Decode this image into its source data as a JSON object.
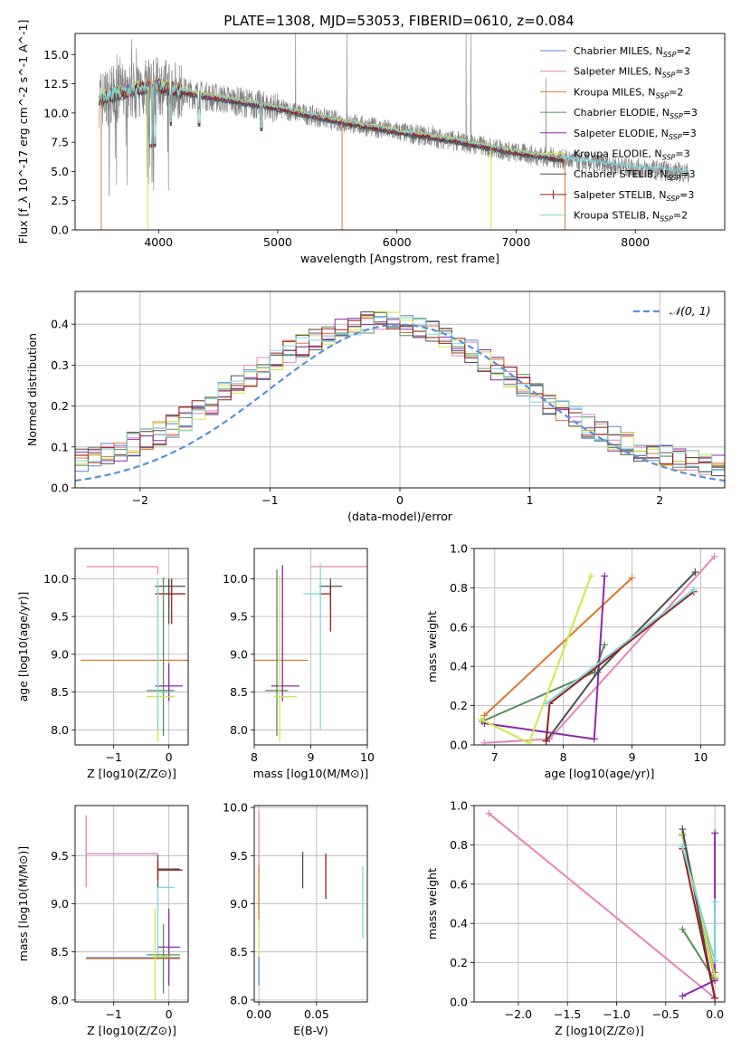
{
  "title": "PLATE=1308, MJD=53053, FIBERID=0610, z=0.084",
  "colors": {
    "chabrier_miles": "#5b84c4",
    "salpeter_miles": "#e485b8",
    "kroupa_miles": "#d9782d",
    "chabrier_elodie": "#5a8a5a",
    "salpeter_elodie": "#8b2aa8",
    "kroupa_elodie": "#cde84a",
    "chabrier_stelib": "#4d4d4d",
    "salpeter_stelib": "#9b1c1c",
    "kroupa_stelib": "#7fd6d8",
    "data": "#7f7f7f",
    "normal": "#5b8fd6"
  },
  "legend": [
    {
      "key": "chabrier_miles",
      "label": "Chabrier MILES, N",
      "sub": "SSP",
      "suffix": "=2"
    },
    {
      "key": "salpeter_miles",
      "label": "Salpeter MILES, N",
      "sub": "SSP",
      "suffix": "=3"
    },
    {
      "key": "kroupa_miles",
      "label": "Kroupa MILES, N",
      "sub": "SSP",
      "suffix": "=2"
    },
    {
      "key": "chabrier_elodie",
      "label": "Chabrier ELODIE, N",
      "sub": "SSP",
      "suffix": "=3"
    },
    {
      "key": "salpeter_elodie",
      "label": "Salpeter ELODIE, N",
      "sub": "SSP",
      "suffix": "=3"
    },
    {
      "key": "kroupa_elodie",
      "label": "Kroupa ELODIE, N",
      "sub": "SSP",
      "suffix": "=3"
    },
    {
      "key": "chabrier_stelib",
      "label": "Chabrier STELIB, N",
      "sub": "SSP",
      "suffix": "=3"
    },
    {
      "key": "salpeter_stelib",
      "label": "Salpeter STELIB, N",
      "sub": "SSP",
      "suffix": "=3"
    },
    {
      "key": "kroupa_stelib",
      "label": "Kroupa STELIB, N",
      "sub": "SSP",
      "suffix": "=2"
    }
  ],
  "chart_data": [
    {
      "id": "spectrum",
      "type": "line",
      "xlabel": "wavelength [Angstrom, rest frame]",
      "ylabel": "Flux [f_λ 10^-17 erg cm^-2 s^-1 A^-1]",
      "xlim": [
        3300,
        8750
      ],
      "ylim": [
        0,
        16.8
      ],
      "xticks": [
        4000,
        5000,
        6000,
        7000,
        8000
      ],
      "yticks": [
        0.0,
        2.5,
        5.0,
        7.5,
        10.0,
        12.5,
        15.0
      ],
      "continuum": {
        "x": [
          3500,
          3700,
          3800,
          3900,
          4000,
          4100,
          4300,
          4600,
          5000,
          5500,
          6000,
          6500,
          7000,
          7500,
          8000,
          8400
        ],
        "y": [
          11.2,
          11.8,
          12.0,
          12.2,
          12.3,
          12.1,
          11.6,
          11.1,
          10.4,
          9.3,
          8.4,
          7.6,
          6.6,
          5.9,
          5.3,
          4.9
        ]
      },
      "model_end_x": 7400,
      "data_end_x": 8450,
      "sky_spikes": [
        {
          "x": 5150,
          "y": 16.8
        },
        {
          "x": 5580,
          "y": 16.8
        },
        {
          "x": 6300,
          "y": 9.0
        },
        {
          "x": 6580,
          "y": 16.8
        },
        {
          "x": 6620,
          "y": 16.8
        },
        {
          "x": 7250,
          "y": 13.0
        }
      ],
      "model_dips": [
        {
          "x": 3520,
          "y": 0
        },
        {
          "x": 3910,
          "y": 0
        },
        {
          "x": 5540,
          "y": 0
        },
        {
          "x": 6790,
          "y": 0
        },
        {
          "x": 7410,
          "y": 0
        }
      ]
    },
    {
      "id": "residuals",
      "type": "step",
      "xlabel": "(data-model)/error",
      "ylabel": "Normed distribution",
      "xlim": [
        -2.5,
        2.5
      ],
      "ylim": [
        0,
        0.48
      ],
      "xticks": [
        -2,
        -1,
        0,
        1,
        2
      ],
      "yticks": [
        0.0,
        0.1,
        0.2,
        0.3,
        0.4
      ],
      "normal_label": "𝒩(0, 1)",
      "bin_width": 0.1
    },
    {
      "id": "age_vs_Z",
      "type": "errorbar",
      "xlabel": "Z [log10(Z/Z⊙)]",
      "ylabel": "age  [log10(age/yr)]",
      "xlim": [
        -1.7,
        0.35
      ],
      "ylim": [
        7.8,
        10.4
      ],
      "xticks": [
        -1,
        0
      ],
      "yticks": [
        8.0,
        8.5,
        9.0,
        9.5,
        10.0
      ],
      "points": [
        {
          "key": "salpeter_miles",
          "x": -0.2,
          "xerr": [
            1.3,
            0
          ],
          "y": 10.16,
          "yerr": [
            0.1,
            0.0
          ]
        },
        {
          "key": "chabrier_stelib",
          "x": 0.0,
          "xerr": [
            0.25,
            0.3
          ],
          "y": 9.9,
          "yerr": [
            0.5,
            0.1
          ]
        },
        {
          "key": "salpeter_stelib",
          "x": 0.05,
          "xerr": [
            0.3,
            0.25
          ],
          "y": 9.8,
          "yerr": [
            0.4,
            0.2
          ]
        },
        {
          "key": "kroupa_miles",
          "x": -0.6,
          "xerr": [
            1.0,
            1.0
          ],
          "y": 8.92,
          "yerr": [
            0,
            0
          ]
        },
        {
          "key": "chabrier_elodie",
          "x": -0.1,
          "xerr": [
            0.3,
            0.2
          ],
          "y": 8.52,
          "yerr": [
            0.6,
            1.5
          ]
        },
        {
          "key": "salpeter_elodie",
          "x": 0.0,
          "xerr": [
            0.25,
            0.25
          ],
          "y": 8.58,
          "yerr": [
            0.2,
            0.3
          ]
        },
        {
          "key": "kroupa_elodie",
          "x": -0.2,
          "xerr": [
            0.2,
            0.3
          ],
          "y": 8.44,
          "yerr": [
            0.6,
            1.5
          ]
        },
        {
          "key": "kroupa_stelib",
          "x": -0.2,
          "xerr": [
            0.0,
            0.2
          ],
          "y": 8.5,
          "yerr": [
            0.5,
            1.5
          ]
        }
      ]
    },
    {
      "id": "age_vs_mass",
      "type": "errorbar",
      "xlabel": "mass [log10(M/M⊙)]",
      "ylabel": "",
      "xlim": [
        8.0,
        10.0
      ],
      "ylim": [
        7.8,
        10.4
      ],
      "xticks": [
        8,
        9,
        10
      ],
      "yticks": [
        8.0,
        8.5,
        9.0,
        9.5,
        10.0
      ],
      "points": [
        {
          "key": "salpeter_miles",
          "x": 9.5,
          "xerr": [
            0.5,
            0.5
          ],
          "y": 10.16,
          "yerr": [
            0,
            0
          ]
        },
        {
          "key": "chabrier_stelib",
          "x": 9.35,
          "xerr": [
            0.2,
            0.2
          ],
          "y": 9.9,
          "yerr": [
            0.3,
            0.1
          ]
        },
        {
          "key": "salpeter_stelib",
          "x": 9.35,
          "xerr": [
            0.2,
            0.0
          ],
          "y": 9.8,
          "yerr": [
            0.5,
            0.1
          ]
        },
        {
          "key": "kroupa_stelib",
          "x": 9.17,
          "xerr": [
            0.3,
            0.0
          ],
          "y": 9.8,
          "yerr": [
            1.8,
            0.4
          ]
        },
        {
          "key": "kroupa_miles",
          "x": 8.45,
          "xerr": [
            0.55,
            0.5
          ],
          "y": 8.92,
          "yerr": [
            0,
            0
          ]
        },
        {
          "key": "chabrier_elodie",
          "x": 8.4,
          "xerr": [
            0.2,
            0.2
          ],
          "y": 8.52,
          "yerr": [
            0.6,
            1.6
          ]
        },
        {
          "key": "salpeter_elodie",
          "x": 8.5,
          "xerr": [
            0.2,
            0.3
          ],
          "y": 8.58,
          "yerr": [
            0.2,
            1.6
          ]
        },
        {
          "key": "kroupa_elodie",
          "x": 8.45,
          "xerr": [
            0.1,
            0.3
          ],
          "y": 8.44,
          "yerr": [
            0.6,
            1.6
          ]
        }
      ]
    },
    {
      "id": "weight_vs_age",
      "type": "line",
      "xlabel": "age  [log10(age/yr)]",
      "ylabel": "mass weight",
      "xlim": [
        6.7,
        10.35
      ],
      "ylim": [
        0,
        1.0
      ],
      "xticks": [
        7,
        8,
        9,
        10
      ],
      "yticks": [
        0.0,
        0.2,
        0.4,
        0.6,
        0.8,
        1.0
      ],
      "series": [
        {
          "key": "kroupa_miles",
          "x": [
            6.85,
            9.0
          ],
          "y": [
            0.15,
            0.85
          ]
        },
        {
          "key": "salpeter_miles",
          "x": [
            6.85,
            7.8,
            10.2
          ],
          "y": [
            0.01,
            0.03,
            0.96
          ]
        },
        {
          "key": "chabrier_elodie",
          "x": [
            6.82,
            8.45,
            8.6
          ],
          "y": [
            0.12,
            0.37,
            0.51
          ]
        },
        {
          "key": "salpeter_elodie",
          "x": [
            6.85,
            8.45,
            8.6
          ],
          "y": [
            0.11,
            0.03,
            0.86
          ]
        },
        {
          "key": "kroupa_elodie",
          "x": [
            6.8,
            7.5,
            8.4
          ],
          "y": [
            0.13,
            0.01,
            0.86
          ]
        },
        {
          "key": "chabrier_stelib",
          "x": [
            7.75,
            8.5,
            9.92
          ],
          "y": [
            0.02,
            0.37,
            0.88
          ]
        },
        {
          "key": "salpeter_stelib",
          "x": [
            7.75,
            7.8,
            9.9
          ],
          "y": [
            0.02,
            0.21,
            0.78
          ]
        },
        {
          "key": "kroupa_stelib",
          "x": [
            7.75,
            9.9
          ],
          "y": [
            0.21,
            0.79
          ]
        }
      ]
    },
    {
      "id": "mass_vs_Z",
      "type": "errorbar",
      "xlabel": "Z [log10(Z/Z⊙)]",
      "ylabel": "mass [log10(M/M⊙)]",
      "xlim": [
        -1.7,
        0.35
      ],
      "ylim": [
        7.98,
        10.02
      ],
      "xticks": [
        -1,
        0
      ],
      "yticks": [
        8.0,
        8.5,
        9.0,
        9.5
      ],
      "points": [
        {
          "key": "salpeter_miles",
          "x": -1.5,
          "xerr": [
            0,
            1.3
          ],
          "y": 9.52,
          "yerr": [
            0.35,
            0.4
          ]
        },
        {
          "key": "chabrier_stelib",
          "x": -0.2,
          "xerr": [
            0.0,
            0.4
          ],
          "y": 9.36,
          "yerr": [
            0.2,
            0.15
          ]
        },
        {
          "key": "salpeter_stelib",
          "x": -0.2,
          "xerr": [
            0.0,
            0.45
          ],
          "y": 9.35,
          "yerr": [
            0.1,
            0.1
          ]
        },
        {
          "key": "kroupa_stelib",
          "x": -0.2,
          "xerr": [
            0.0,
            0.3
          ],
          "y": 9.17,
          "yerr": [
            0.7,
            0.0
          ]
        },
        {
          "key": "chabrier_miles",
          "x": -0.6,
          "xerr": [
            0.9,
            0.8
          ],
          "y": 8.44,
          "yerr": [
            0,
            0
          ]
        },
        {
          "key": "kroupa_miles",
          "x": -0.6,
          "xerr": [
            0.9,
            0.8
          ],
          "y": 8.43,
          "yerr": [
            0,
            0
          ]
        },
        {
          "key": "salpeter_elodie",
          "x": 0.0,
          "xerr": [
            0.2,
            0.2
          ],
          "y": 8.55,
          "yerr": [
            0.4,
            0.4
          ]
        },
        {
          "key": "chabrier_elodie",
          "x": -0.1,
          "xerr": [
            0.3,
            0.3
          ],
          "y": 8.47,
          "yerr": [
            0.4,
            0.32
          ]
        },
        {
          "key": "kroupa_elodie",
          "x": -0.25,
          "xerr": [
            0.0,
            0.3
          ],
          "y": 8.45,
          "yerr": [
            0.45,
            0.5
          ]
        }
      ]
    },
    {
      "id": "mass_vs_ebv",
      "type": "errorbar",
      "xlabel": "E(B-V)",
      "ylabel": "",
      "xlim": [
        -0.004,
        0.094
      ],
      "ylim": [
        7.98,
        10.02
      ],
      "xticks": [
        0.0,
        0.05
      ],
      "ytickLabels": [
        "8.0",
        "8.5",
        "9.0",
        "9.5",
        "10.0"
      ],
      "yticks": [
        8.0,
        8.5,
        9.0,
        9.5,
        10.0
      ],
      "points": [
        {
          "key": "chabrier_stelib",
          "x": 0.038,
          "xerr": [
            0,
            0
          ],
          "y": 9.36,
          "yerr": [
            0.2,
            0.18
          ]
        },
        {
          "key": "salpeter_stelib",
          "x": 0.058,
          "xerr": [
            0,
            0
          ],
          "y": 9.3,
          "yerr": [
            0.25,
            0.22
          ]
        },
        {
          "key": "kroupa_stelib",
          "x": 0.09,
          "xerr": [
            0,
            0
          ],
          "y": 9.02,
          "yerr": [
            0.38,
            0.37
          ]
        },
        {
          "key": "salpeter_miles",
          "x": 0.0,
          "xerr": [
            0,
            0
          ],
          "y": 9.62,
          "yerr": [
            0.3,
            0.35
          ]
        },
        {
          "key": "kroupa_miles",
          "x": 0.0,
          "xerr": [
            0,
            0
          ],
          "y": 9.2,
          "yerr": [
            0.4,
            0.2
          ]
        },
        {
          "key": "kroupa_elodie",
          "x": 0.0,
          "xerr": [
            0,
            0
          ],
          "y": 8.62,
          "yerr": [
            0.2,
            0.22
          ]
        },
        {
          "key": "chabrier_miles",
          "x": 0.0,
          "xerr": [
            0,
            0
          ],
          "y": 8.3,
          "yerr": [
            0.15,
            0.15
          ]
        }
      ]
    },
    {
      "id": "weight_vs_Z",
      "type": "line",
      "xlabel": "Z [log10(Z/Z⊙)]",
      "ylabel": "mass weight",
      "xlim": [
        -2.45,
        0.1
      ],
      "ylim": [
        0,
        1.0
      ],
      "xticks": [
        -2.0,
        -1.5,
        -1.0,
        -0.5,
        0.0
      ],
      "yticks": [
        0.0,
        0.2,
        0.4,
        0.6,
        0.8,
        1.0
      ],
      "series": [
        {
          "key": "salpeter_miles",
          "x": [
            -2.3,
            0.0
          ],
          "y": [
            0.96,
            0.02
          ]
        },
        {
          "key": "kroupa_miles",
          "x": [
            -0.33,
            0.0
          ],
          "y": [
            0.85,
            0.15
          ]
        },
        {
          "key": "chabrier_elodie",
          "x": [
            -0.33,
            0.0
          ],
          "y": [
            0.37,
            0.11
          ]
        },
        {
          "key": "chabrier_elodie",
          "x": [
            -0.33,
            0.0
          ],
          "y": [
            0.85,
            0.12
          ]
        },
        {
          "key": "salpeter_elodie",
          "x": [
            -0.33,
            0.0,
            0.0
          ],
          "y": [
            0.03,
            0.11,
            0.86
          ]
        },
        {
          "key": "kroupa_elodie",
          "x": [
            -0.33,
            0.0
          ],
          "y": [
            0.86,
            0.13
          ]
        },
        {
          "key": "chabrier_stelib",
          "x": [
            -0.33,
            0.0
          ],
          "y": [
            0.88,
            0.02
          ]
        },
        {
          "key": "salpeter_stelib",
          "x": [
            -0.33,
            0.0
          ],
          "y": [
            0.78,
            0.02
          ]
        },
        {
          "key": "kroupa_stelib",
          "x": [
            -0.33,
            0.0,
            0.0
          ],
          "y": [
            0.79,
            0.21,
            0.51
          ]
        }
      ]
    }
  ]
}
